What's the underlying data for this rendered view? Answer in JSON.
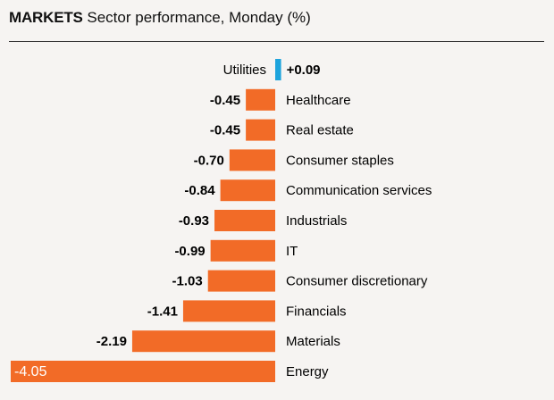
{
  "chart_data": {
    "type": "bar",
    "orientation": "horizontal",
    "title_bold": "MARKETS",
    "title": "Sector performance, Monday (%)",
    "categories": [
      "Utilities",
      "Healthcare",
      "Real estate",
      "Consumer staples",
      "Communication services",
      "Industrials",
      "IT",
      "Consumer discretionary",
      "Financials",
      "Materials",
      "Energy"
    ],
    "values": [
      0.09,
      -0.45,
      -0.45,
      -0.7,
      -0.84,
      -0.93,
      -0.99,
      -1.03,
      -1.41,
      -2.19,
      -4.05
    ],
    "value_labels": [
      "+0.09",
      "-0.45",
      "-0.45",
      "-0.70",
      "-0.84",
      "-0.93",
      "-0.99",
      "-1.03",
      "-1.41",
      "-2.19",
      "-4.05"
    ],
    "xlim": [
      -4.05,
      0.09
    ],
    "grid": false,
    "colors": {
      "positive": "#1ea4dc",
      "negative": "#f26b27",
      "inside_label": "#ffffff"
    }
  }
}
